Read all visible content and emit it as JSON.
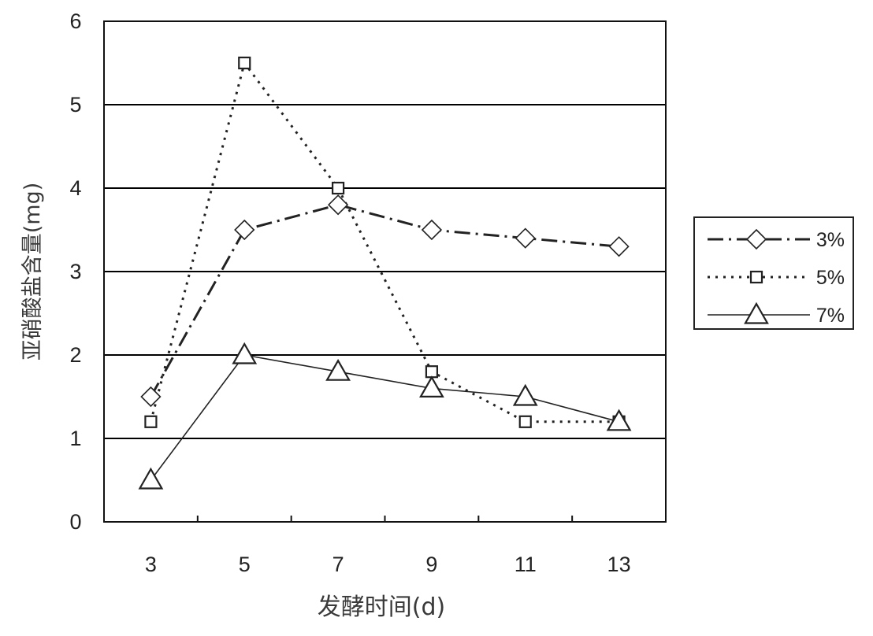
{
  "chart_data": {
    "type": "line",
    "title": "",
    "xlabel": "发酵时间(d)",
    "ylabel": "亚硝酸盐含量(mg)",
    "x": [
      3,
      5,
      7,
      9,
      11,
      13
    ],
    "xticks": [
      "3",
      "5",
      "7",
      "9",
      "11",
      "13"
    ],
    "yticks": [
      "0",
      "1",
      "2",
      "3",
      "4",
      "5",
      "6"
    ],
    "ylim": [
      0,
      6
    ],
    "grid": "horizontal",
    "legend_position": "right",
    "series": [
      {
        "name": "3%",
        "marker": "diamond",
        "line": "dash-dot",
        "values": [
          1.5,
          3.5,
          3.8,
          3.5,
          3.4,
          3.3
        ]
      },
      {
        "name": "5%",
        "marker": "square",
        "line": "dotted",
        "values": [
          1.2,
          5.5,
          4.0,
          1.8,
          1.2,
          1.2
        ]
      },
      {
        "name": "7%",
        "marker": "triangle",
        "line": "solid",
        "values": [
          0.5,
          2.0,
          1.8,
          1.6,
          1.5,
          1.2
        ]
      }
    ],
    "colors": {
      "line": "#222222",
      "grid": "#000000",
      "axis_title": "#3a3a3a"
    }
  }
}
